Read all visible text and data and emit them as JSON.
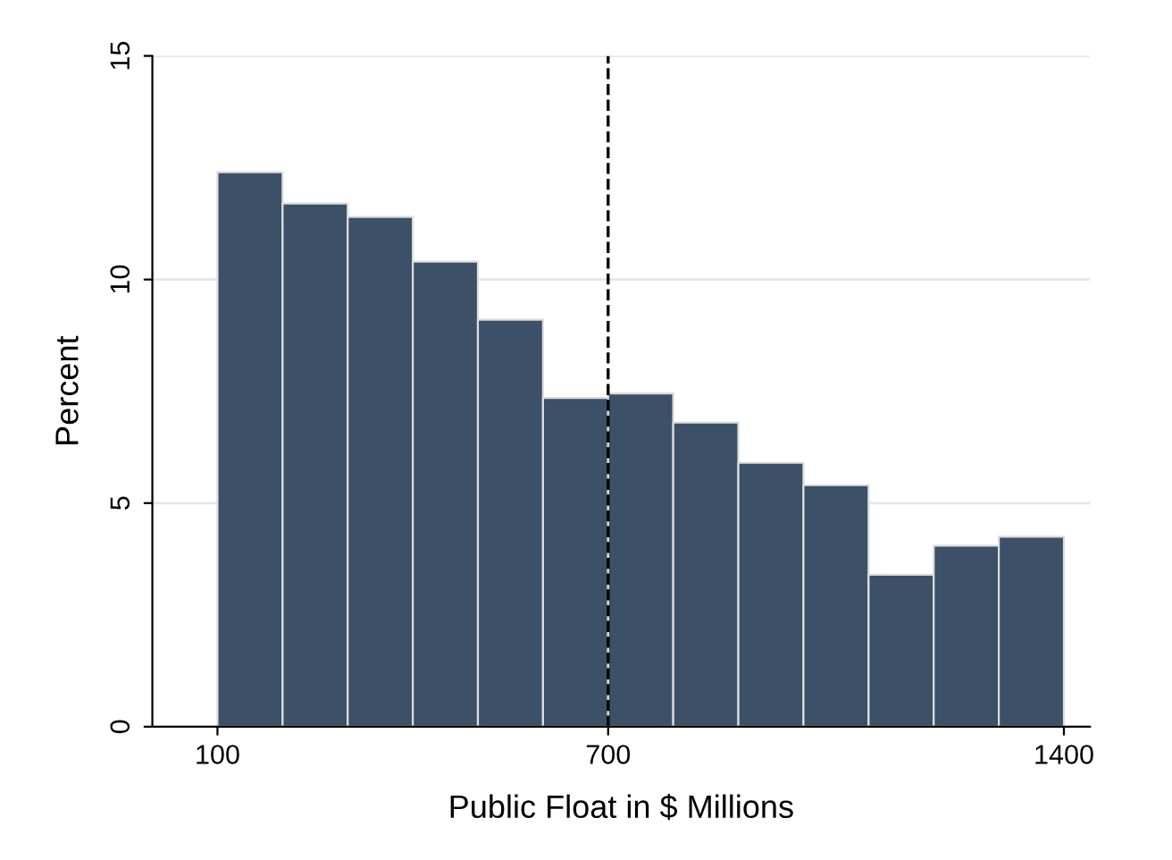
{
  "chart_data": {
    "type": "histogram",
    "xlabel": "Public Float in $ Millions",
    "ylabel": "Percent",
    "bins": [
      100,
      200,
      300,
      400,
      500,
      600,
      700,
      800,
      900,
      1000,
      1100,
      1200,
      1300,
      1400
    ],
    "values": [
      12.4,
      11.7,
      11.4,
      10.4,
      9.1,
      7.35,
      7.45,
      6.8,
      5.9,
      5.4,
      3.4,
      4.05,
      4.25
    ],
    "color": "#3c5068",
    "xlim": [
      0,
      1440
    ],
    "xticks": [
      100,
      700,
      1400
    ],
    "ylim": [
      0,
      15
    ],
    "yticks": [
      0,
      5,
      10,
      15
    ],
    "grid": "y",
    "ref_lines": [
      {
        "axis": "x",
        "value": 700,
        "color": "#000000",
        "line_style": "dashed"
      }
    ]
  }
}
